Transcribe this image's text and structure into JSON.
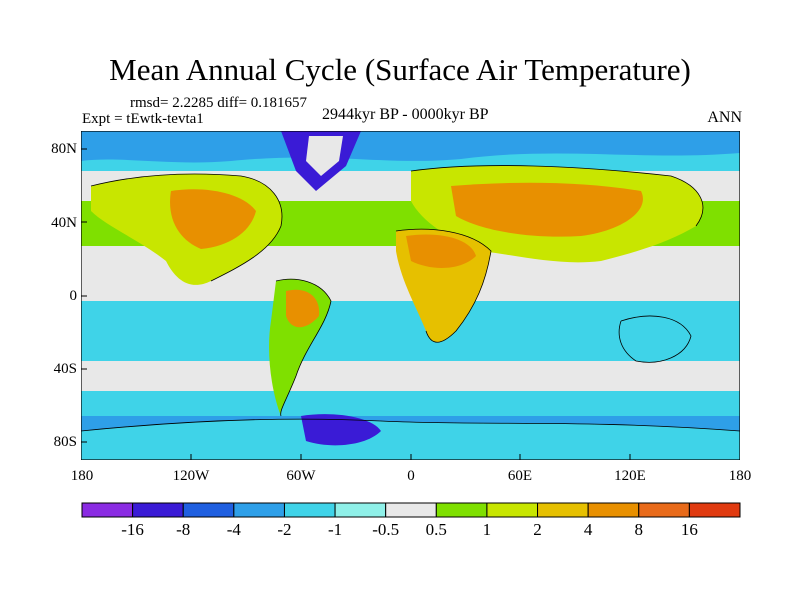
{
  "title": "Mean Annual Cycle (Surface Air Temperature)",
  "stats": "rmsd= 2.2285 diff= 0.181657",
  "experiment": "Expt = tEwtk-tevta1",
  "period": "2944kyr BP - 0000kyr BP",
  "season": "ANN",
  "map": {
    "lat_ticks": [
      "80N",
      "40N",
      "0",
      "40S",
      "80S"
    ],
    "lon_ticks": [
      "180",
      "120W",
      "60W",
      "0",
      "60E",
      "120E",
      "180"
    ],
    "regions": {
      "land_warm": "North America / Eurasia / Africa warm anomaly",
      "ocean_cool": "Southern and tropical oceans cool anomaly"
    }
  },
  "legend": {
    "labels": [
      "-16",
      "-8",
      "-4",
      "-2",
      "-1",
      "-0.5",
      "0.5",
      "1",
      "2",
      "4",
      "8",
      "16"
    ],
    "colors": [
      "#8a2be2",
      "#3a1bd6",
      "#1f5fe0",
      "#2e9fe8",
      "#3fd3e8",
      "#8ff0e8",
      "#e8e8e8",
      "#7fe000",
      "#c8e600",
      "#e6c000",
      "#e89000",
      "#e86a1a",
      "#e03a10"
    ]
  }
}
